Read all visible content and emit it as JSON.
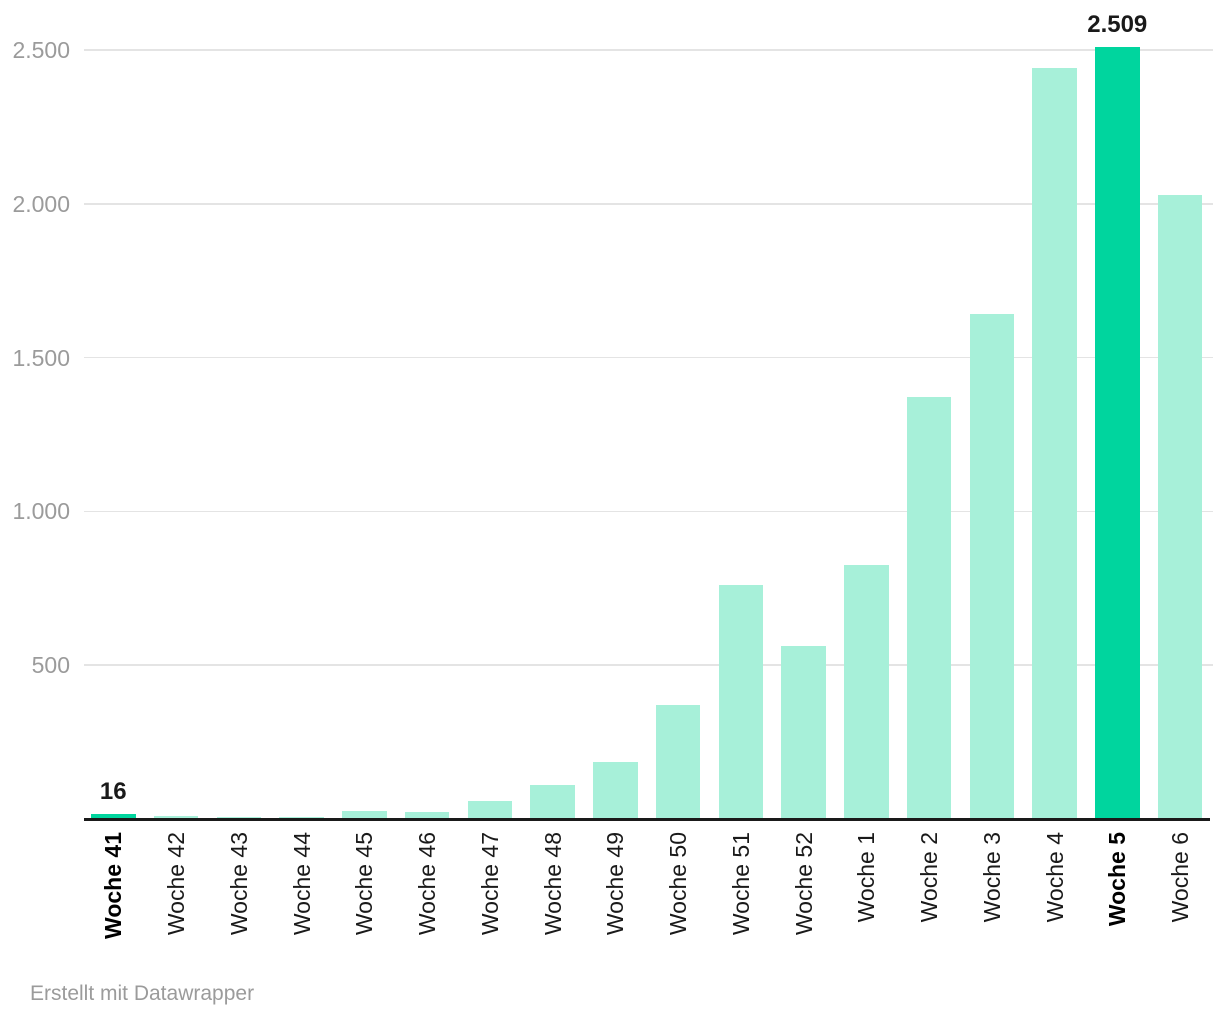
{
  "chart_data": {
    "type": "bar",
    "title": "",
    "xlabel": "",
    "ylabel": "",
    "categories": [
      "Woche 41",
      "Woche 42",
      "Woche 43",
      "Woche 44",
      "Woche 45",
      "Woche 46",
      "Woche 47",
      "Woche 48",
      "Woche 49",
      "Woche 50",
      "Woche 51",
      "Woche 52",
      "Woche 1",
      "Woche 2",
      "Woche 3",
      "Woche 4",
      "Woche 5",
      "Woche 6"
    ],
    "values": [
      16,
      11,
      7,
      5,
      25,
      23,
      57,
      110,
      186,
      372,
      760,
      561,
      825,
      1373,
      1641,
      2443,
      2509,
      2030
    ],
    "highlight_indexes": [
      0,
      16
    ],
    "bold_category_indexes": [
      0,
      16
    ],
    "value_labels": [
      {
        "index": 0,
        "text": "16"
      },
      {
        "index": 16,
        "text": "2.509"
      }
    ],
    "y_ticks": [
      {
        "value": 500,
        "label": "500"
      },
      {
        "value": 1000,
        "label": "1.000"
      },
      {
        "value": 1500,
        "label": "1.500"
      },
      {
        "value": 2000,
        "label": "2.000"
      },
      {
        "value": 2500,
        "label": "2.500"
      }
    ],
    "ylim": [
      0,
      2500
    ],
    "grid": "horizontal",
    "legend": "none",
    "colors": {
      "bar": "#a7f0d9",
      "highlight": "#00d59e",
      "grid": "#e4e4e4",
      "axis": "#1a1a1a",
      "tick_text": "#9b9b9b",
      "label_text": "#1a1a1a"
    }
  },
  "footer": {
    "attribution": "Erstellt mit Datawrapper"
  }
}
